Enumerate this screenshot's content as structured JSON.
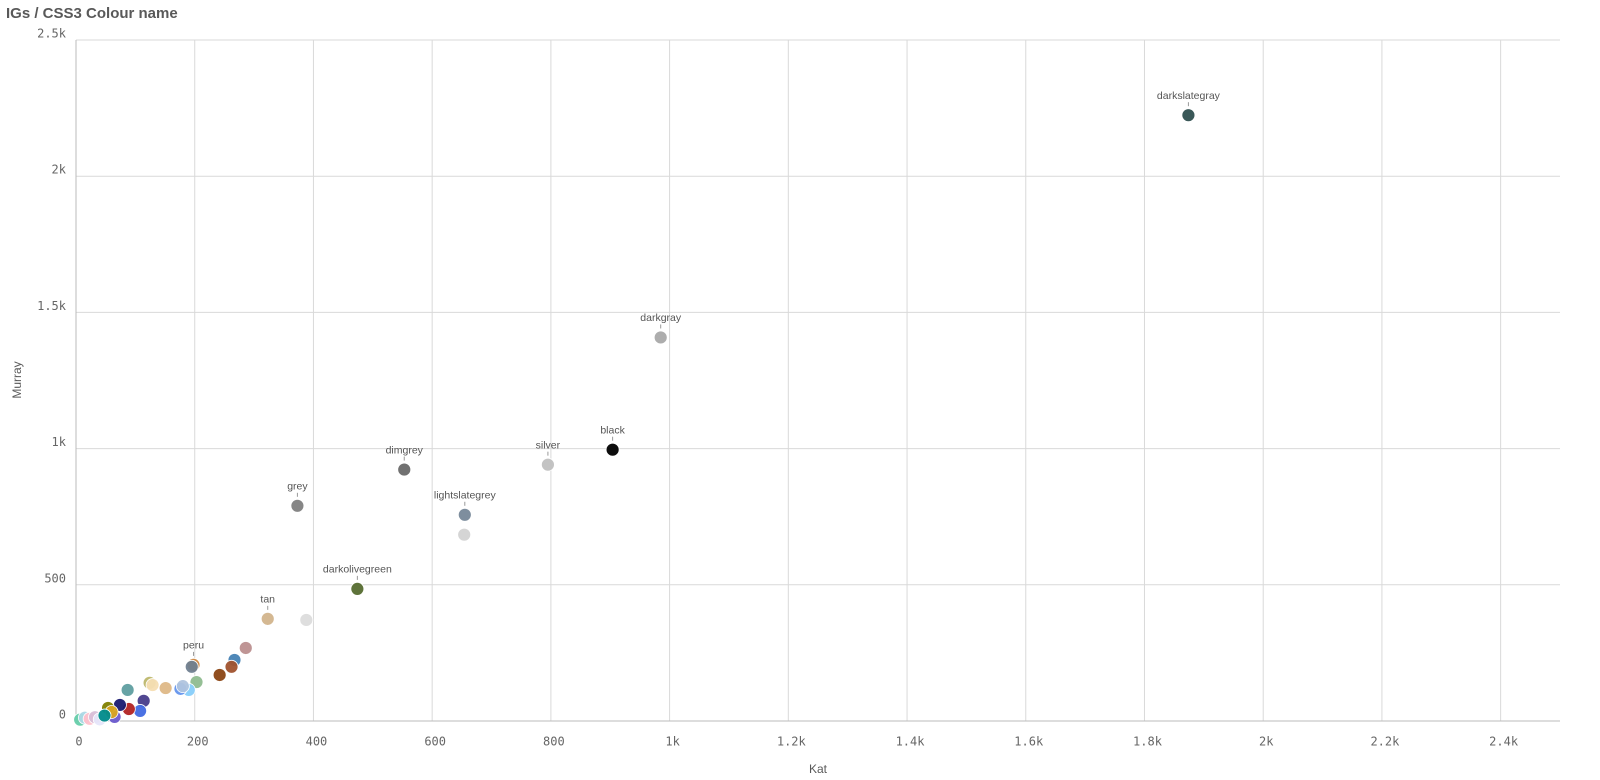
{
  "chart_data": {
    "type": "scatter",
    "title": "IGs / CSS3 Colour name",
    "x_label": "Kat",
    "y_label": "Murray",
    "x": [
      1874,
      985,
      904,
      795,
      655,
      654,
      553,
      373,
      474,
      323,
      388,
      198,
      195,
      286,
      267,
      262,
      242,
      203,
      190,
      176,
      180,
      151,
      124,
      129,
      87,
      114,
      108,
      89,
      74,
      65,
      54,
      60,
      7,
      15,
      23,
      32,
      40,
      48
    ],
    "values": [
      2224,
      1408,
      996,
      941,
      757,
      684,
      923,
      790,
      485,
      375,
      371,
      206,
      199,
      268,
      224,
      199,
      169,
      143,
      114,
      118,
      128,
      121,
      140,
      132,
      114,
      74,
      37,
      44,
      59,
      15,
      48,
      33,
      5,
      12,
      8,
      14,
      6,
      20
    ],
    "colors": [
      "#2f4f4f",
      "#a9a9a9",
      "#000000",
      "#c0c0c0",
      "#778899",
      "#d3d3d3",
      "#696969",
      "#808080",
      "#556b2f",
      "#d2b48c",
      "#dcdcdc",
      "#cd853f",
      "#708090",
      "#bc8f8f",
      "#4682b4",
      "#a0522d",
      "#8b4513",
      "#8fbc8f",
      "#87cefa",
      "#6495ed",
      "#b0c4de",
      "#deb887",
      "#bdb76b",
      "#f5deb3",
      "#5f9ea0",
      "#483d8b",
      "#4169e1",
      "#b22222",
      "#191970",
      "#6a5acd",
      "#808000",
      "#daa520",
      "#66cdaa",
      "#add8e6",
      "#ffc0cb",
      "#d8bfd8",
      "#e6e6fa",
      "#008b8b"
    ],
    "labels": [
      "darkslategray",
      "darkgray",
      "black",
      "silver",
      "lightslategrey",
      null,
      "dimgrey",
      "grey",
      "darkolivegreen",
      "tan",
      null,
      "peru",
      null,
      null,
      null,
      null,
      null,
      null,
      null,
      null,
      null,
      null,
      null,
      null,
      null,
      null,
      null,
      null,
      null,
      null,
      null,
      null,
      null,
      null,
      null,
      null,
      null,
      null
    ],
    "xlim": [
      0,
      2500
    ],
    "ylim": [
      0,
      2500
    ],
    "xticks": [
      0,
      200,
      400,
      600,
      800,
      {
        "value": 1000,
        "label": "1k"
      },
      {
        "value": 1200,
        "label": "1.2k"
      },
      {
        "value": 1400,
        "label": "1.4k"
      },
      {
        "value": 1600,
        "label": "1.6k"
      },
      {
        "value": 1800,
        "label": "1.8k"
      },
      {
        "value": 2000,
        "label": "2k"
      },
      {
        "value": 2200,
        "label": "2.2k"
      },
      {
        "value": 2400,
        "label": "2.4k"
      }
    ],
    "yticks": [
      0,
      500,
      {
        "value": 1000,
        "label": "1k"
      },
      {
        "value": 1500,
        "label": "1.5k"
      },
      {
        "value": 2000,
        "label": "2k"
      },
      {
        "value": 2500,
        "label": "2.5k"
      }
    ],
    "grid": true
  }
}
